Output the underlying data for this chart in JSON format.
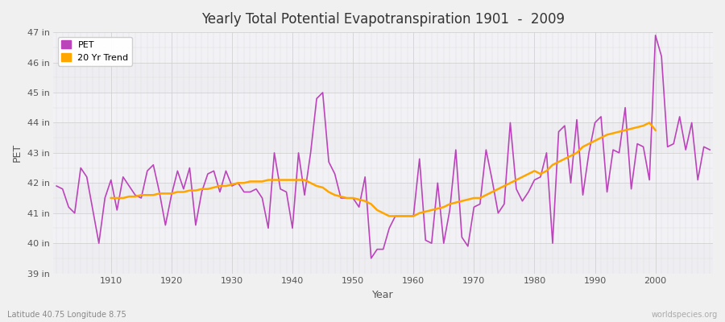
{
  "title": "Yearly Total Potential Evapotranspiration 1901  -  2009",
  "xlabel": "Year",
  "ylabel": "PET",
  "subtitle_left": "Latitude 40.75 Longitude 8.75",
  "subtitle_right": "worldspecies.org",
  "bg_color": "#f0f0f0",
  "plot_bg_color": "#f5f5f8",
  "pet_color": "#bb44bb",
  "trend_color": "#ffa500",
  "ylim": [
    39,
    47
  ],
  "years": [
    1901,
    1902,
    1903,
    1904,
    1905,
    1906,
    1907,
    1908,
    1909,
    1910,
    1911,
    1912,
    1913,
    1914,
    1915,
    1916,
    1917,
    1918,
    1919,
    1920,
    1921,
    1922,
    1923,
    1924,
    1925,
    1926,
    1927,
    1928,
    1929,
    1930,
    1931,
    1932,
    1933,
    1934,
    1935,
    1936,
    1937,
    1938,
    1939,
    1940,
    1941,
    1942,
    1943,
    1944,
    1945,
    1946,
    1947,
    1948,
    1949,
    1950,
    1951,
    1952,
    1953,
    1954,
    1955,
    1956,
    1957,
    1958,
    1959,
    1960,
    1961,
    1962,
    1963,
    1964,
    1965,
    1966,
    1967,
    1968,
    1969,
    1970,
    1971,
    1972,
    1973,
    1974,
    1975,
    1976,
    1977,
    1978,
    1979,
    1980,
    1981,
    1982,
    1983,
    1984,
    1985,
    1986,
    1987,
    1988,
    1989,
    1990,
    1991,
    1992,
    1993,
    1994,
    1995,
    1996,
    1997,
    1998,
    1999,
    2000,
    2001,
    2002,
    2003,
    2004,
    2005,
    2006,
    2007,
    2008,
    2009
  ],
  "pet_values": [
    41.9,
    41.8,
    41.2,
    41.0,
    42.5,
    42.2,
    41.1,
    40.0,
    41.5,
    42.1,
    41.1,
    42.2,
    41.9,
    41.6,
    41.5,
    42.4,
    42.6,
    41.7,
    40.6,
    41.6,
    42.4,
    41.8,
    42.5,
    40.6,
    41.7,
    42.3,
    42.4,
    41.7,
    42.4,
    41.9,
    42.0,
    41.7,
    41.7,
    41.8,
    41.5,
    40.5,
    43.0,
    41.8,
    41.7,
    40.5,
    43.0,
    41.6,
    43.0,
    44.8,
    45.0,
    42.7,
    42.3,
    41.5,
    41.5,
    41.5,
    41.2,
    42.2,
    39.5,
    39.8,
    39.8,
    40.5,
    40.9,
    40.9,
    40.9,
    40.9,
    42.8,
    40.1,
    40.0,
    42.0,
    40.0,
    41.1,
    43.1,
    40.2,
    39.9,
    41.2,
    41.3,
    43.1,
    42.1,
    41.0,
    41.3,
    44.0,
    41.8,
    41.4,
    41.7,
    42.1,
    42.2,
    43.0,
    40.0,
    43.7,
    43.9,
    42.0,
    44.1,
    41.6,
    43.0,
    44.0,
    44.2,
    41.7,
    43.1,
    43.0,
    44.5,
    41.8,
    43.3,
    43.2,
    42.1,
    46.9,
    46.2,
    43.2,
    43.3,
    44.2,
    43.1,
    44.0,
    42.1,
    43.2,
    43.1
  ],
  "trend_values": [
    null,
    null,
    null,
    null,
    null,
    null,
    null,
    null,
    null,
    41.5,
    41.5,
    41.5,
    41.55,
    41.55,
    41.6,
    41.6,
    41.6,
    41.65,
    41.65,
    41.65,
    41.7,
    41.7,
    41.75,
    41.75,
    41.8,
    41.8,
    41.85,
    41.9,
    41.9,
    41.95,
    42.0,
    42.0,
    42.05,
    42.05,
    42.05,
    42.1,
    42.1,
    42.1,
    42.1,
    42.1,
    42.1,
    42.1,
    42.0,
    41.9,
    41.85,
    41.7,
    41.6,
    41.55,
    41.5,
    41.5,
    41.45,
    41.4,
    41.3,
    41.1,
    41.0,
    40.9,
    40.9,
    40.9,
    40.9,
    40.9,
    41.0,
    41.05,
    41.1,
    41.15,
    41.2,
    41.3,
    41.35,
    41.4,
    41.45,
    41.5,
    41.5,
    41.6,
    41.7,
    41.8,
    41.9,
    42.0,
    42.1,
    42.2,
    42.3,
    42.4,
    42.3,
    42.4,
    42.6,
    42.7,
    42.8,
    42.9,
    43.0,
    43.2,
    43.3,
    43.4,
    43.5,
    43.6,
    43.65,
    43.7,
    43.75,
    43.8,
    43.85,
    43.9,
    44.0,
    43.75,
    null,
    null,
    null,
    null,
    null,
    null,
    null,
    null,
    null
  ]
}
